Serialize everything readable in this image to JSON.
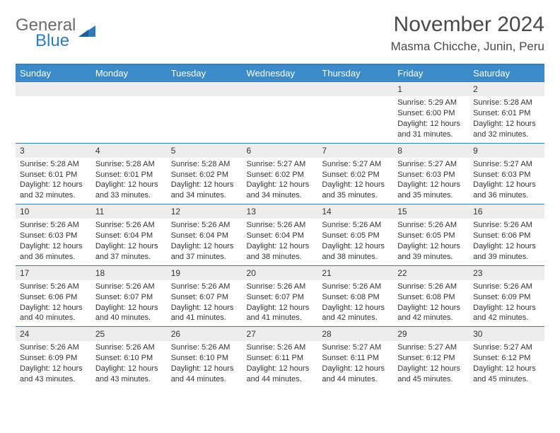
{
  "brand": {
    "part1": "General",
    "part2": "Blue"
  },
  "title": "November 2024",
  "location": "Masma Chicche, Junin, Peru",
  "colors": {
    "header_bg": "#3b8bca",
    "header_text": "#ffffff",
    "rule": "#3b7fb9",
    "daynum_bg": "#ededed",
    "body_text": "#333333",
    "page_bg": "#ffffff",
    "logo_gray": "#6b6b6b",
    "logo_blue": "#2b7bbf"
  },
  "typography": {
    "title_fontsize": 30,
    "location_fontsize": 17,
    "header_fontsize": 13,
    "daynum_fontsize": 12,
    "body_fontsize": 11,
    "logo_fontsize": 24
  },
  "day_headers": [
    "Sunday",
    "Monday",
    "Tuesday",
    "Wednesday",
    "Thursday",
    "Friday",
    "Saturday"
  ],
  "weeks": [
    {
      "nums": [
        "",
        "",
        "",
        "",
        "",
        "1",
        "2"
      ],
      "details": [
        null,
        null,
        null,
        null,
        null,
        {
          "sunrise": "Sunrise: 5:29 AM",
          "sunset": "Sunset: 6:00 PM",
          "daylight": "Daylight: 12 hours and 31 minutes."
        },
        {
          "sunrise": "Sunrise: 5:28 AM",
          "sunset": "Sunset: 6:01 PM",
          "daylight": "Daylight: 12 hours and 32 minutes."
        }
      ]
    },
    {
      "nums": [
        "3",
        "4",
        "5",
        "6",
        "7",
        "8",
        "9"
      ],
      "details": [
        {
          "sunrise": "Sunrise: 5:28 AM",
          "sunset": "Sunset: 6:01 PM",
          "daylight": "Daylight: 12 hours and 32 minutes."
        },
        {
          "sunrise": "Sunrise: 5:28 AM",
          "sunset": "Sunset: 6:01 PM",
          "daylight": "Daylight: 12 hours and 33 minutes."
        },
        {
          "sunrise": "Sunrise: 5:28 AM",
          "sunset": "Sunset: 6:02 PM",
          "daylight": "Daylight: 12 hours and 34 minutes."
        },
        {
          "sunrise": "Sunrise: 5:27 AM",
          "sunset": "Sunset: 6:02 PM",
          "daylight": "Daylight: 12 hours and 34 minutes."
        },
        {
          "sunrise": "Sunrise: 5:27 AM",
          "sunset": "Sunset: 6:02 PM",
          "daylight": "Daylight: 12 hours and 35 minutes."
        },
        {
          "sunrise": "Sunrise: 5:27 AM",
          "sunset": "Sunset: 6:03 PM",
          "daylight": "Daylight: 12 hours and 35 minutes."
        },
        {
          "sunrise": "Sunrise: 5:27 AM",
          "sunset": "Sunset: 6:03 PM",
          "daylight": "Daylight: 12 hours and 36 minutes."
        }
      ]
    },
    {
      "nums": [
        "10",
        "11",
        "12",
        "13",
        "14",
        "15",
        "16"
      ],
      "details": [
        {
          "sunrise": "Sunrise: 5:26 AM",
          "sunset": "Sunset: 6:03 PM",
          "daylight": "Daylight: 12 hours and 36 minutes."
        },
        {
          "sunrise": "Sunrise: 5:26 AM",
          "sunset": "Sunset: 6:04 PM",
          "daylight": "Daylight: 12 hours and 37 minutes."
        },
        {
          "sunrise": "Sunrise: 5:26 AM",
          "sunset": "Sunset: 6:04 PM",
          "daylight": "Daylight: 12 hours and 37 minutes."
        },
        {
          "sunrise": "Sunrise: 5:26 AM",
          "sunset": "Sunset: 6:04 PM",
          "daylight": "Daylight: 12 hours and 38 minutes."
        },
        {
          "sunrise": "Sunrise: 5:26 AM",
          "sunset": "Sunset: 6:05 PM",
          "daylight": "Daylight: 12 hours and 38 minutes."
        },
        {
          "sunrise": "Sunrise: 5:26 AM",
          "sunset": "Sunset: 6:05 PM",
          "daylight": "Daylight: 12 hours and 39 minutes."
        },
        {
          "sunrise": "Sunrise: 5:26 AM",
          "sunset": "Sunset: 6:06 PM",
          "daylight": "Daylight: 12 hours and 39 minutes."
        }
      ]
    },
    {
      "nums": [
        "17",
        "18",
        "19",
        "20",
        "21",
        "22",
        "23"
      ],
      "details": [
        {
          "sunrise": "Sunrise: 5:26 AM",
          "sunset": "Sunset: 6:06 PM",
          "daylight": "Daylight: 12 hours and 40 minutes."
        },
        {
          "sunrise": "Sunrise: 5:26 AM",
          "sunset": "Sunset: 6:07 PM",
          "daylight": "Daylight: 12 hours and 40 minutes."
        },
        {
          "sunrise": "Sunrise: 5:26 AM",
          "sunset": "Sunset: 6:07 PM",
          "daylight": "Daylight: 12 hours and 41 minutes."
        },
        {
          "sunrise": "Sunrise: 5:26 AM",
          "sunset": "Sunset: 6:07 PM",
          "daylight": "Daylight: 12 hours and 41 minutes."
        },
        {
          "sunrise": "Sunrise: 5:26 AM",
          "sunset": "Sunset: 6:08 PM",
          "daylight": "Daylight: 12 hours and 42 minutes."
        },
        {
          "sunrise": "Sunrise: 5:26 AM",
          "sunset": "Sunset: 6:08 PM",
          "daylight": "Daylight: 12 hours and 42 minutes."
        },
        {
          "sunrise": "Sunrise: 5:26 AM",
          "sunset": "Sunset: 6:09 PM",
          "daylight": "Daylight: 12 hours and 42 minutes."
        }
      ]
    },
    {
      "nums": [
        "24",
        "25",
        "26",
        "27",
        "28",
        "29",
        "30"
      ],
      "details": [
        {
          "sunrise": "Sunrise: 5:26 AM",
          "sunset": "Sunset: 6:09 PM",
          "daylight": "Daylight: 12 hours and 43 minutes."
        },
        {
          "sunrise": "Sunrise: 5:26 AM",
          "sunset": "Sunset: 6:10 PM",
          "daylight": "Daylight: 12 hours and 43 minutes."
        },
        {
          "sunrise": "Sunrise: 5:26 AM",
          "sunset": "Sunset: 6:10 PM",
          "daylight": "Daylight: 12 hours and 44 minutes."
        },
        {
          "sunrise": "Sunrise: 5:26 AM",
          "sunset": "Sunset: 6:11 PM",
          "daylight": "Daylight: 12 hours and 44 minutes."
        },
        {
          "sunrise": "Sunrise: 5:27 AM",
          "sunset": "Sunset: 6:11 PM",
          "daylight": "Daylight: 12 hours and 44 minutes."
        },
        {
          "sunrise": "Sunrise: 5:27 AM",
          "sunset": "Sunset: 6:12 PM",
          "daylight": "Daylight: 12 hours and 45 minutes."
        },
        {
          "sunrise": "Sunrise: 5:27 AM",
          "sunset": "Sunset: 6:12 PM",
          "daylight": "Daylight: 12 hours and 45 minutes."
        }
      ]
    }
  ]
}
